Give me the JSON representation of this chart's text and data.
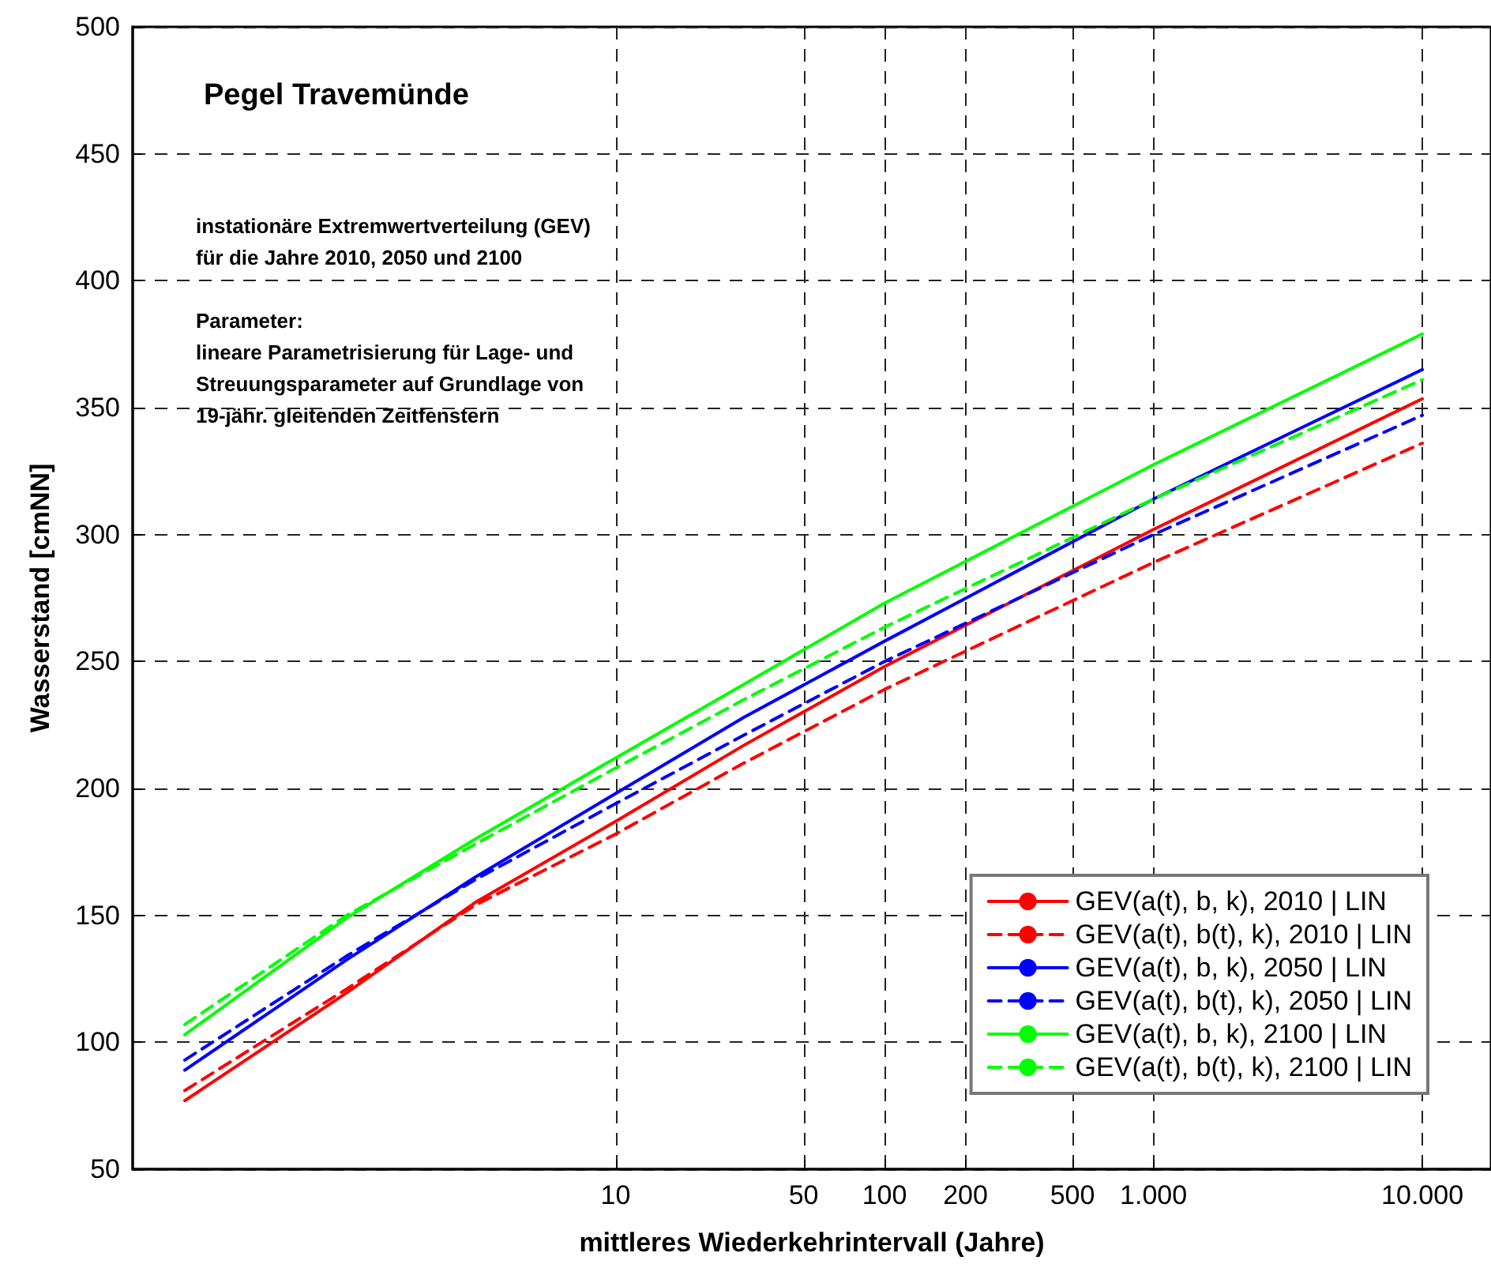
{
  "chart_data": {
    "type": "line",
    "title": "Pegel Travemünde",
    "xlabel": "mittleres Wiederkehrintervall (Jahre)",
    "ylabel": "Wasserstand [cmNN]",
    "annotations": [
      "instationäre Extremwertverteilung (GEV)\nfür die Jahre 2010, 2050 und 2100",
      "Parameter:\nlineare Parametrisierung für Lage- und\nStreuungsparameter auf Grundlage von\n19-jähr. gleitenden Zeitfenstern"
    ],
    "x": [
      0.25,
      1,
      3,
      10,
      30,
      100,
      1000,
      10000
    ],
    "series": [
      {
        "name": "GEV(a(t), b, k), 2010 | LIN",
        "color": "#ff0000",
        "line_style": "solid",
        "values": [
          77,
          119.5,
          155,
          187,
          217,
          248,
          302,
          353.5
        ]
      },
      {
        "name": "GEV(a(t), b(t), k), 2010 | LIN",
        "color": "#ff0000",
        "line_style": "dashed",
        "values": [
          81,
          121,
          154,
          182,
          210,
          239,
          289,
          336
        ]
      },
      {
        "name": "GEV(a(t), b, k), 2050 | LIN",
        "color": "#0000ff",
        "line_style": "solid",
        "values": [
          89,
          132.5,
          165,
          198,
          228,
          258,
          314,
          365
        ]
      },
      {
        "name": "GEV(a(t), b(t), k), 2050 | LIN",
        "color": "#0000ff",
        "line_style": "dashed",
        "values": [
          93,
          134,
          164,
          194,
          221,
          250,
          300,
          347
        ]
      },
      {
        "name": "GEV(a(t), b, k), 2100 | LIN",
        "color": "#00ff00",
        "line_style": "solid",
        "values": [
          103,
          149,
          180,
          212,
          241,
          273,
          327.5,
          379
        ]
      },
      {
        "name": "GEV(a(t), b(t), k), 2100 | LIN",
        "color": "#00ff00",
        "line_style": "dashed",
        "values": [
          107,
          150,
          178,
          208,
          235,
          263.5,
          314,
          361
        ]
      }
    ],
    "log": "x",
    "xlim": [
      0.16,
      18000
    ],
    "xticks": [
      10,
      50,
      100,
      200,
      500,
      {
        "value": 1000,
        "label": "1.000"
      },
      {
        "value": 10000,
        "label": "10.000"
      }
    ],
    "ylim": [
      50,
      500
    ],
    "yticks": [
      50,
      100,
      150,
      200,
      250,
      300,
      350,
      400,
      450,
      500
    ],
    "grid": true,
    "legend": "bottom right",
    "marker": "none"
  }
}
